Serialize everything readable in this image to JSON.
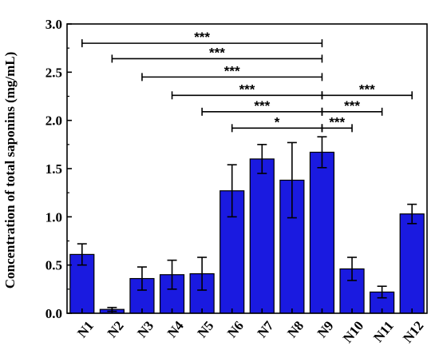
{
  "chart_data": {
    "type": "bar",
    "categories": [
      "N1",
      "N2",
      "N3",
      "N4",
      "N5",
      "N6",
      "N7",
      "N8",
      "N9",
      "N10",
      "N11",
      "N12"
    ],
    "values": [
      0.61,
      0.04,
      0.36,
      0.4,
      0.41,
      1.27,
      1.6,
      1.38,
      1.67,
      0.46,
      0.22,
      1.03
    ],
    "errors": [
      0.11,
      0.02,
      0.12,
      0.15,
      0.17,
      0.27,
      0.15,
      0.39,
      0.16,
      0.12,
      0.06,
      0.1
    ],
    "ylabel": "Concentration of total saponins (mg/mL)",
    "xlabel": "",
    "ylim": [
      0.0,
      3.0
    ],
    "yticks": [
      "0.0",
      "0.5",
      "1.0",
      "1.5",
      "2.0",
      "2.5",
      "3.0"
    ],
    "bar_color": "#1a1ae0",
    "grid": false,
    "significance": [
      {
        "from": "N1",
        "to": "N9",
        "y": 2.8,
        "label": "***"
      },
      {
        "from": "N2",
        "to": "N9",
        "y": 2.64,
        "label": "***"
      },
      {
        "from": "N3",
        "to": "N9",
        "y": 2.45,
        "label": "***"
      },
      {
        "from": "N4",
        "to": "N9",
        "y": 2.26,
        "label": "***"
      },
      {
        "from": "N5",
        "to": "N9",
        "y": 2.09,
        "label": "***"
      },
      {
        "from": "N6",
        "to": "N9",
        "y": 1.92,
        "label": "*"
      },
      {
        "from": "N9",
        "to": "N12",
        "y": 2.26,
        "label": "***"
      },
      {
        "from": "N9",
        "to": "N11",
        "y": 2.09,
        "label": "***"
      },
      {
        "from": "N9",
        "to": "N10",
        "y": 1.92,
        "label": "***"
      }
    ]
  }
}
